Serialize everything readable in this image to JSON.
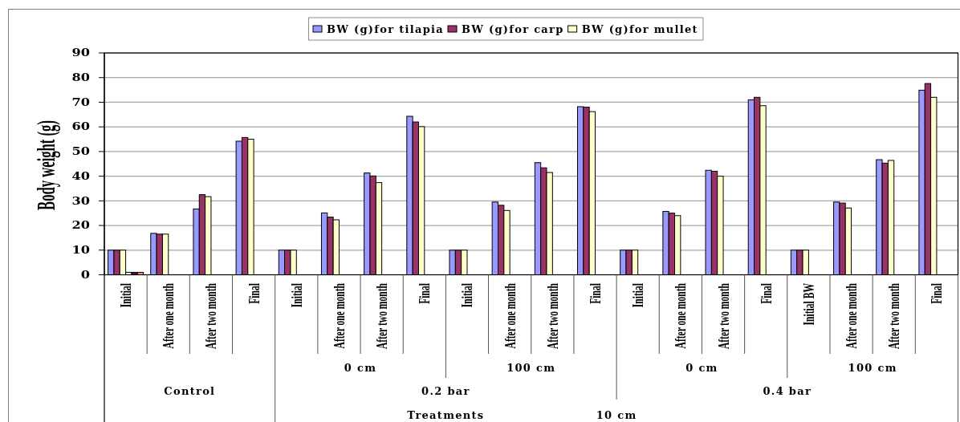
{
  "chart_data": {
    "type": "bar",
    "ylabel": "Body weight (g)",
    "categories": [
      "Initial",
      "After one month",
      "After two month",
      "Final",
      "Initial",
      "After one month",
      "After two month",
      "Final",
      "Initial",
      "After one month",
      "After two month",
      "Final",
      "Initial",
      "After one month",
      "After two month",
      "Final",
      "Initial BW",
      "After one month",
      "After two month",
      "Final"
    ],
    "series": [
      {
        "name": "BW (g)for tilapia",
        "color": "#9999ff",
        "values": [
          10,
          16.8,
          26.7,
          54.2,
          10,
          25.1,
          41.3,
          64.3,
          10,
          29.5,
          45.5,
          68.2,
          10,
          25.7,
          42.4,
          71,
          10,
          29.5,
          46.7,
          74.9
        ]
      },
      {
        "name": "BW (g)for carp",
        "color": "#993366",
        "values": [
          10,
          16.5,
          32.5,
          55.7,
          10,
          23.4,
          40.1,
          62,
          10,
          28.2,
          43.4,
          68,
          10,
          25,
          42,
          72,
          10,
          29.1,
          45.3,
          77.6
        ]
      },
      {
        "name": "BW (g)for mullet",
        "color": "#ffffcc",
        "values": [
          10,
          16.5,
          31.7,
          55,
          10,
          22.3,
          37.4,
          60.1,
          10,
          26.1,
          41.5,
          66.2,
          10,
          24,
          40,
          68.6,
          10,
          27.1,
          46.4,
          72
        ]
      },
      {
        "color": "#ccffff",
        "values": [
          1,
          null,
          null,
          null,
          null,
          null,
          null,
          null,
          null,
          null,
          null,
          null,
          null,
          null,
          null,
          null,
          null,
          null,
          null,
          null
        ]
      },
      {
        "color": "#660066",
        "values": [
          1,
          null,
          null,
          null,
          null,
          null,
          null,
          null,
          null,
          null,
          null,
          null,
          null,
          null,
          null,
          null,
          null,
          null,
          null,
          null
        ]
      },
      {
        "color": "#ff8080",
        "values": [
          1,
          null,
          null,
          null,
          null,
          null,
          null,
          null,
          null,
          null,
          null,
          null,
          null,
          null,
          null,
          null,
          null,
          null,
          null,
          null
        ]
      }
    ],
    "ylim": [
      0,
      90
    ],
    "yticks": [
      0,
      10,
      20,
      30,
      40,
      50,
      60,
      70,
      80,
      90
    ],
    "grid": "y",
    "legend": "top",
    "annotations": [
      "0 cm",
      "100 cm",
      "0 cm",
      "100 cm",
      "Control",
      "0.2 bar",
      "0.4 bar",
      "Treatments",
      "10 cm"
    ]
  }
}
